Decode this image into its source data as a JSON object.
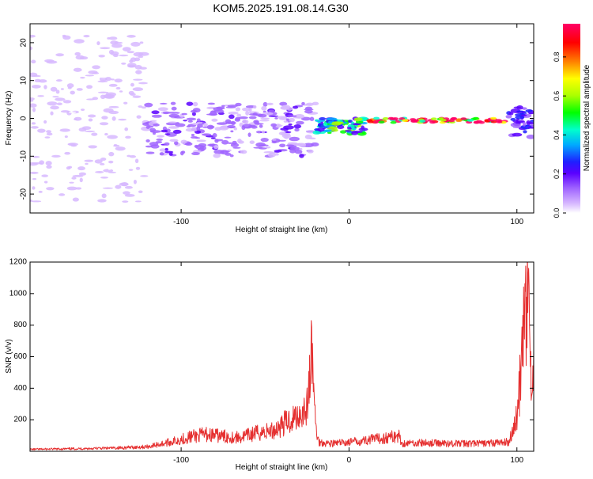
{
  "figure_title": "KOM5.2025.191.08.14.G30",
  "colors": {
    "snr_line": "#e53030",
    "colormap": [
      "#ffffff",
      "#d7b8ff",
      "#a064ff",
      "#5a00ff",
      "#1f1fff",
      "#00aaff",
      "#00ffcc",
      "#00ff00",
      "#aaff00",
      "#ffff00",
      "#ff8000",
      "#ff0000",
      "#ff0066"
    ]
  },
  "chart_data": [
    {
      "type": "heatmap",
      "title": "",
      "xlabel": "Height of straight line (km)",
      "ylabel": "Frequency (Hz)",
      "xlim": [
        -190,
        110
      ],
      "ylim": [
        -25,
        25
      ],
      "xticks": [
        -100,
        0,
        100
      ],
      "yticks": [
        -20,
        -10,
        0,
        10,
        20
      ],
      "colorbar": {
        "label": "Normalized spectral amplitude",
        "range": [
          0,
          0.97
        ],
        "ticks": [
          0.0,
          0.2,
          0.4,
          0.6,
          0.8
        ]
      },
      "grid": false,
      "features": [
        {
          "x_range": [
            -190,
            -120
          ],
          "freq_center": 0,
          "freq_spread": 22,
          "amplitude": 0.08
        },
        {
          "x_range": [
            -120,
            -20
          ],
          "freq_center": -3,
          "freq_spread": 7,
          "amplitude": 0.15
        },
        {
          "x_range": [
            -20,
            10
          ],
          "freq_center": -2,
          "freq_spread": 2,
          "amplitude": 0.45
        },
        {
          "x_range": [
            10,
            95
          ],
          "freq_center": -0.5,
          "freq_spread": 0.6,
          "amplitude": 0.95
        },
        {
          "x_range": [
            95,
            110
          ],
          "freq_center": -1,
          "freq_spread": 4,
          "amplitude": 0.25
        }
      ]
    },
    {
      "type": "line",
      "title": "",
      "xlabel": "Height of straight line (km)",
      "ylabel": "SNR (v/v)",
      "xlim": [
        -190,
        110
      ],
      "ylim": [
        0,
        1200
      ],
      "xticks": [
        -100,
        0,
        100
      ],
      "yticks": [
        200,
        400,
        600,
        800,
        1000,
        1200
      ],
      "grid": false,
      "series": [
        {
          "x": [
            -190,
            -160,
            -140,
            -120,
            -105,
            -95,
            -85,
            -75,
            -65,
            -55,
            -45,
            -38,
            -30,
            -25,
            -22,
            -20,
            -18,
            -10,
            0,
            10,
            20,
            30,
            31,
            40,
            60,
            80,
            95,
            100,
            103,
            105,
            107,
            108,
            110
          ],
          "values": [
            15,
            20,
            25,
            35,
            75,
            110,
            130,
            115,
            105,
            140,
            160,
            220,
            280,
            340,
            780,
            200,
            70,
            60,
            70,
            85,
            100,
            120,
            60,
            65,
            60,
            60,
            70,
            260,
            700,
            1050,
            1200,
            620,
            600
          ]
        }
      ]
    }
  ]
}
